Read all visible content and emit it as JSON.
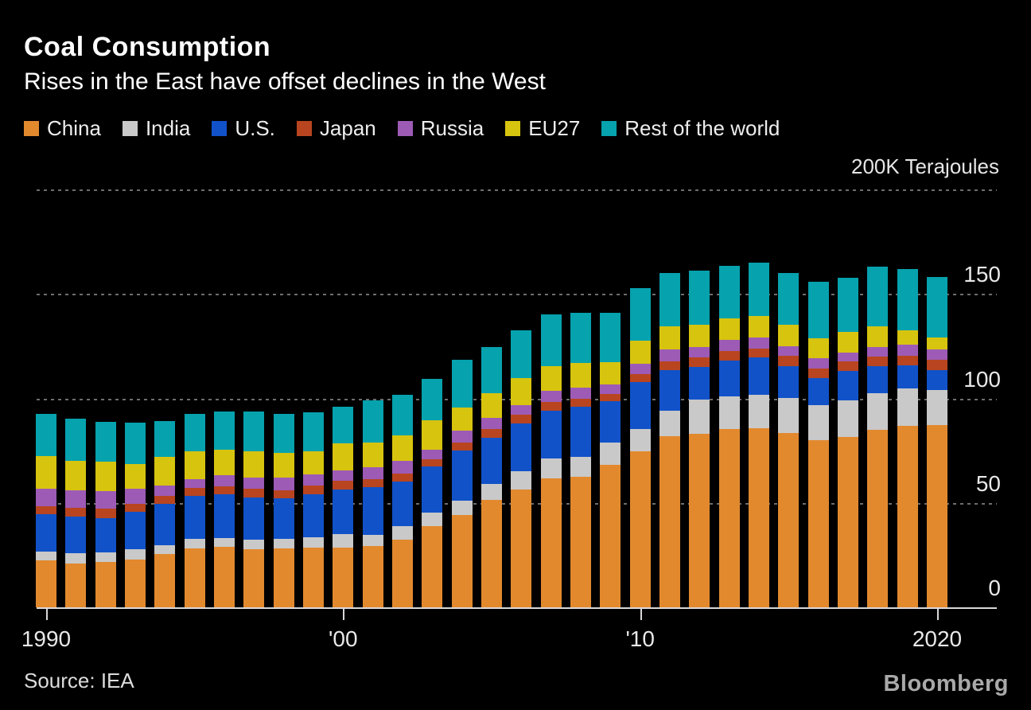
{
  "chart_data": {
    "type": "bar",
    "variant": "stacked",
    "title": "Coal Consumption",
    "subtitle": "Rises in the East have offset declines in the West",
    "unit_label": "200K Terajoules",
    "source": "Source: IEA",
    "branding": "Bloomberg",
    "legend_position": "top",
    "grid": "dotted horizontal gridlines",
    "ylim": [
      0,
      200
    ],
    "y_gridlines": [
      200,
      150,
      100,
      50
    ],
    "y_ticks": [
      150,
      100,
      50,
      0
    ],
    "x_ticks": [
      {
        "label": "1990",
        "year": 1990
      },
      {
        "label": "'00",
        "year": 2000
      },
      {
        "label": "'10",
        "year": 2010
      },
      {
        "label": "2020",
        "year": 2020
      }
    ],
    "years": [
      1990,
      1991,
      1992,
      1993,
      1994,
      1995,
      1996,
      1997,
      1998,
      1999,
      2000,
      2001,
      2002,
      2003,
      2004,
      2005,
      2006,
      2007,
      2008,
      2009,
      2010,
      2011,
      2012,
      2013,
      2014,
      2015,
      2016,
      2017,
      2018,
      2019,
      2020
    ],
    "series": [
      {
        "name": "China",
        "color": "#E2892E",
        "values": [
          22.5,
          21.1,
          21.8,
          23.0,
          25.5,
          28.2,
          29.0,
          27.7,
          28.1,
          28.5,
          28.5,
          29.4,
          32.3,
          38.7,
          44.3,
          51.6,
          56.4,
          61.8,
          62.4,
          68.1,
          74.7,
          81.8,
          83.1,
          85.3,
          85.6,
          83.6,
          80.2,
          81.4,
          84.9,
          86.9,
          87.4
        ]
      },
      {
        "name": "India",
        "color": "#C9C9C9",
        "values": [
          4.0,
          4.9,
          4.5,
          4.8,
          4.2,
          4.6,
          4.2,
          4.6,
          4.5,
          5.1,
          6.4,
          5.1,
          6.4,
          6.8,
          6.7,
          7.4,
          8.6,
          9.5,
          9.8,
          10.8,
          10.6,
          12.4,
          16.5,
          15.5,
          16.2,
          16.6,
          16.5,
          17.5,
          17.5,
          17.8,
          16.6
        ]
      },
      {
        "name": "U.S.",
        "color": "#1152C9",
        "values": [
          18.2,
          17.5,
          16.4,
          18.1,
          20.0,
          20.7,
          20.8,
          20.4,
          19.7,
          20.6,
          21.6,
          23.1,
          21.6,
          22.1,
          24.0,
          22.0,
          23.2,
          22.9,
          23.7,
          19.7,
          22.5,
          19.4,
          15.6,
          17.5,
          17.8,
          15.2,
          13.1,
          14.3,
          13.0,
          11.1,
          9.6
        ]
      },
      {
        "name": "Japan",
        "color": "#B8451F",
        "values": [
          3.8,
          4.2,
          4.5,
          3.6,
          3.8,
          3.7,
          3.8,
          4.0,
          3.8,
          4.1,
          4.1,
          3.9,
          3.8,
          3.4,
          4.0,
          4.3,
          3.9,
          4.2,
          3.8,
          3.3,
          3.8,
          4.1,
          4.4,
          4.5,
          4.2,
          5.1,
          4.7,
          4.5,
          4.6,
          4.7,
          4.9
        ]
      },
      {
        "name": "Russia",
        "color": "#9D5BB5",
        "values": [
          8.4,
          8.4,
          8.3,
          7.3,
          4.8,
          4.3,
          5.3,
          5.4,
          6.0,
          5.4,
          4.8,
          5.4,
          6.0,
          4.5,
          5.5,
          5.4,
          4.7,
          5.1,
          5.6,
          4.7,
          5.1,
          5.7,
          5.1,
          5.3,
          5.4,
          4.6,
          4.7,
          4.1,
          4.7,
          5.1,
          4.9
        ]
      },
      {
        "name": "EU27",
        "color": "#D7C40F",
        "values": [
          15.4,
          14.1,
          14.3,
          11.8,
          13.7,
          13.1,
          12.5,
          12.7,
          11.8,
          11.1,
          13.0,
          12.1,
          12.1,
          14.0,
          11.0,
          11.7,
          13.1,
          12.0,
          11.5,
          10.9,
          10.9,
          11.1,
          10.6,
          10.2,
          10.4,
          10.2,
          9.6,
          9.9,
          9.8,
          7.1,
          5.7
        ]
      },
      {
        "name": "Rest of the world",
        "color": "#06A2AE",
        "values": [
          20.1,
          20.0,
          19.1,
          19.9,
          17.2,
          18.1,
          18.0,
          18.8,
          18.7,
          18.6,
          17.8,
          20.0,
          19.3,
          19.7,
          22.9,
          22.3,
          22.9,
          24.6,
          24.2,
          23.3,
          25.1,
          25.5,
          25.7,
          25.2,
          25.5,
          24.7,
          27.0,
          26.1,
          28.7,
          29.3,
          28.9
        ]
      }
    ]
  }
}
